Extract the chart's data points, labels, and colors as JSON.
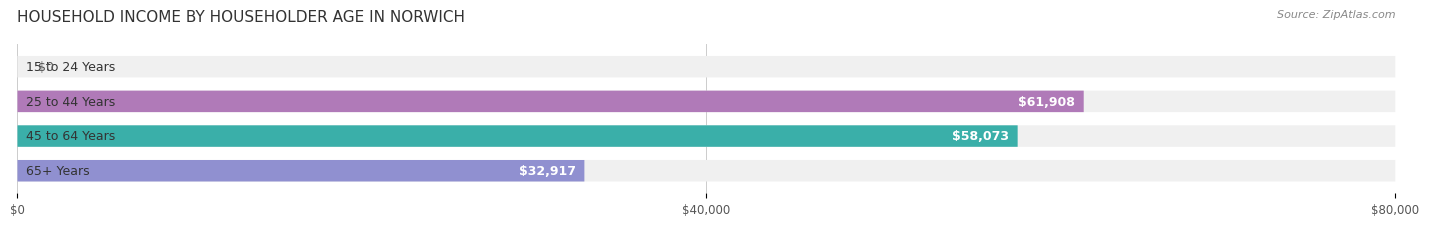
{
  "title": "HOUSEHOLD INCOME BY HOUSEHOLDER AGE IN NORWICH",
  "source": "Source: ZipAtlas.com",
  "categories": [
    "15 to 24 Years",
    "25 to 44 Years",
    "45 to 64 Years",
    "65+ Years"
  ],
  "values": [
    0,
    61908,
    58073,
    32917
  ],
  "bar_colors": [
    "#a8c8e8",
    "#b07ab8",
    "#3aafa9",
    "#9090d0"
  ],
  "bar_bg_color": "#f0f0f0",
  "value_labels": [
    "$0",
    "$61,908",
    "$58,073",
    "$32,917"
  ],
  "xlim": [
    0,
    80000
  ],
  "xticks": [
    0,
    40000,
    80000
  ],
  "xticklabels": [
    "$0",
    "$40,000",
    "$80,000"
  ],
  "background_color": "#ffffff",
  "title_fontsize": 11,
  "source_fontsize": 8,
  "label_fontsize": 9,
  "tick_fontsize": 8.5
}
